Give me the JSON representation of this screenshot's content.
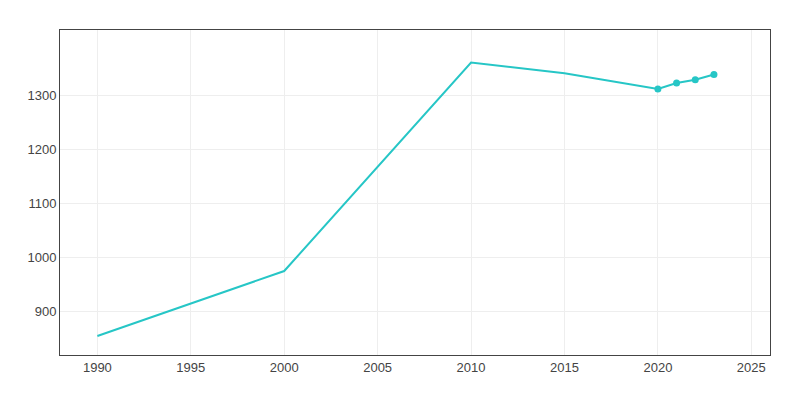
{
  "chart_data": {
    "type": "line",
    "x": [
      1990,
      2000,
      2010,
      2015,
      2020,
      2021,
      2022,
      2023
    ],
    "series": [
      {
        "type": "line",
        "color": "#26c6c6",
        "values": [
          855,
          975,
          1360,
          1340,
          1311,
          1322,
          1328,
          1338
        ]
      },
      {
        "type": "scatter",
        "marker": "circle",
        "color": "#26c6c6",
        "values": [
          null,
          null,
          null,
          null,
          1311,
          1322,
          1328,
          1338
        ]
      }
    ],
    "xlim": [
      1988,
      2026
    ],
    "ylim": [
      820,
      1420
    ],
    "xticks": [
      1990,
      1995,
      2000,
      2005,
      2010,
      2015,
      2020,
      2025
    ],
    "yticks": [
      900,
      1000,
      1100,
      1200,
      1300
    ],
    "grid": true
  }
}
